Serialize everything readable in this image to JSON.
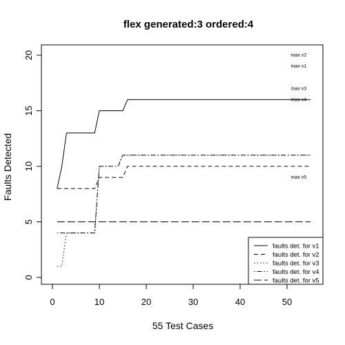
{
  "chart_data": {
    "type": "line",
    "title": "flex generated:3 ordered:4",
    "xlabel": "55 Test Cases",
    "ylabel": "Faults Detected",
    "xlim": [
      0,
      55
    ],
    "ylim": [
      0,
      20
    ],
    "xticks": [
      0,
      10,
      20,
      30,
      40,
      50
    ],
    "yticks": [
      0,
      5,
      10,
      15,
      20
    ],
    "grid": false,
    "legend_position": "bottom-right",
    "series": [
      {
        "name": "faults det. for v1",
        "dash": "solid",
        "x": [
          1,
          2,
          3,
          9,
          10,
          15,
          16,
          55
        ],
        "y": [
          8,
          10,
          13,
          13,
          15,
          15,
          16,
          16
        ]
      },
      {
        "name": "faults det. for v2",
        "dash": "dashed",
        "x": [
          1,
          9,
          10,
          15,
          16,
          55
        ],
        "y": [
          8,
          8,
          9,
          9,
          10,
          10
        ]
      },
      {
        "name": "faults det. for v3",
        "dash": "dotted",
        "x": [
          1,
          2,
          3,
          9,
          10,
          14,
          15,
          55
        ],
        "y": [
          1,
          1,
          4,
          4,
          10,
          10,
          11,
          11
        ]
      },
      {
        "name": "faults det. for v4",
        "dash": "dotdash",
        "x": [
          1,
          9,
          10,
          14,
          15,
          55
        ],
        "y": [
          4,
          4,
          10,
          10,
          11,
          11
        ]
      },
      {
        "name": "faults det. for v5",
        "dash": "longdash",
        "x": [
          1,
          55
        ],
        "y": [
          5,
          5
        ]
      }
    ],
    "annotations": [
      {
        "text": "max v2",
        "x": 52,
        "y": 20
      },
      {
        "text": "max v1",
        "x": 52,
        "y": 19
      },
      {
        "text": "max v3",
        "x": 52,
        "y": 17
      },
      {
        "text": "max v4",
        "x": 52,
        "y": 16
      },
      {
        "text": "max v5",
        "x": 52,
        "y": 9
      }
    ]
  }
}
